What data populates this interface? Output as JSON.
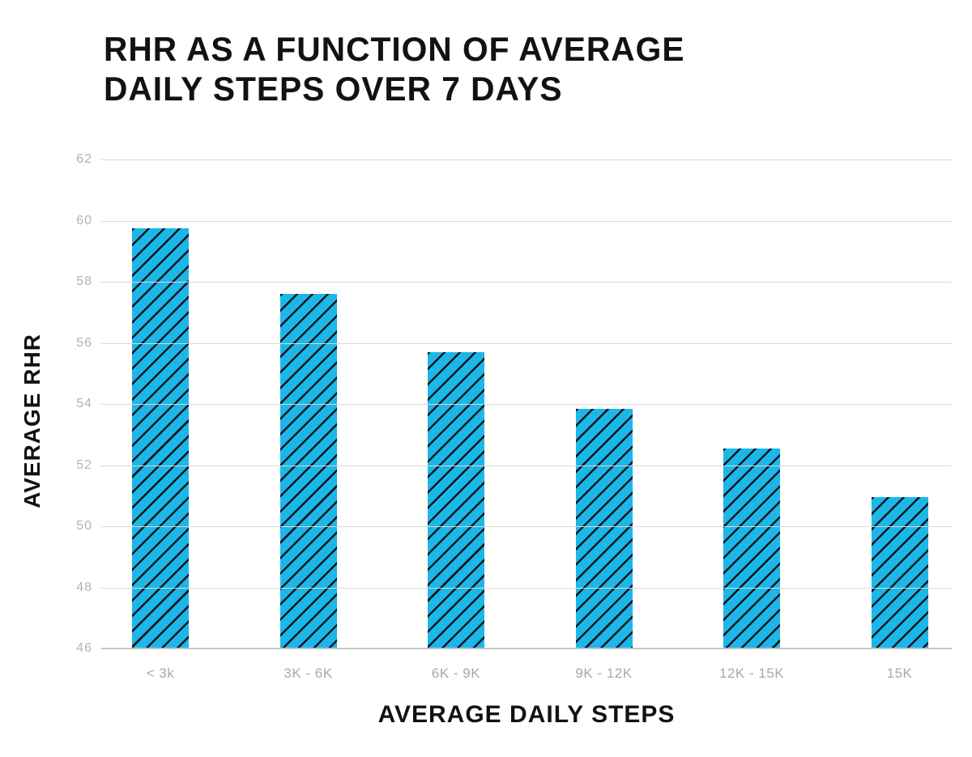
{
  "title": {
    "line1": "RHR AS A FUNCTION OF AVERAGE",
    "line2": "DAILY STEPS OVER 7 DAYS"
  },
  "chart_data": {
    "type": "bar",
    "title": "RHR AS A FUNCTION OF AVERAGE DAILY STEPS OVER 7 DAYS",
    "categories": [
      "< 3k",
      "3K - 6K",
      "6K - 9K",
      "9K - 12K",
      "12K - 15K",
      "15K"
    ],
    "values": [
      59.75,
      57.6,
      55.7,
      53.85,
      52.55,
      50.95
    ],
    "xlabel": "AVERAGE DAILY STEPS",
    "ylabel": "AVERAGE RHR",
    "ylim": [
      46,
      62
    ],
    "yticks": [
      46,
      48,
      50,
      52,
      54,
      56,
      58,
      60,
      62
    ],
    "grid": true,
    "legend": false,
    "bar_hatch": "diagonal-forward-slash"
  },
  "colors": {
    "bar_fill": "#1bb7e9",
    "bar_hatch": "#14151c",
    "gridline": "#d8d8d8",
    "baseline": "#c6c6c6",
    "ytick_label": "#b3b3b3",
    "xtick_label": "#a8a8a8",
    "text": "#121212"
  }
}
